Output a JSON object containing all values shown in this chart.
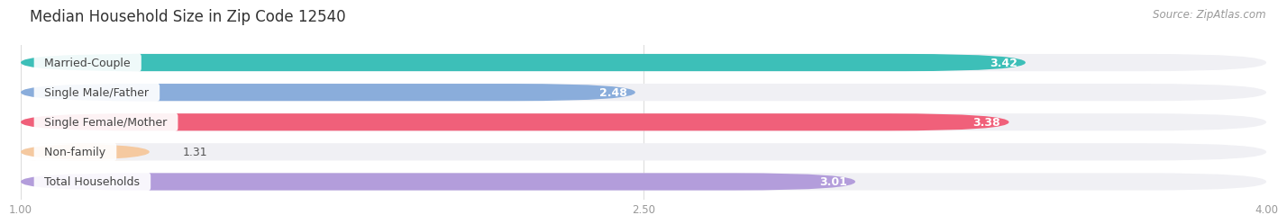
{
  "title": "Median Household Size in Zip Code 12540",
  "source": "Source: ZipAtlas.com",
  "categories": [
    "Married-Couple",
    "Single Male/Father",
    "Single Female/Mother",
    "Non-family",
    "Total Households"
  ],
  "values": [
    3.42,
    2.48,
    3.38,
    1.31,
    3.01
  ],
  "bar_colors": [
    "#3dbfb8",
    "#8aaddb",
    "#f0607a",
    "#f5c9a0",
    "#b39ddb"
  ],
  "xlim": [
    1.0,
    4.0
  ],
  "xticks": [
    1.0,
    2.5,
    4.0
  ],
  "xtick_labels": [
    "1.00",
    "2.50",
    "4.00"
  ],
  "background_color": "#ffffff",
  "bar_bg_color": "#f0f0f4",
  "title_fontsize": 12,
  "label_fontsize": 9,
  "value_fontsize": 9,
  "source_fontsize": 8.5,
  "bar_height": 0.58,
  "rounding": 0.29
}
